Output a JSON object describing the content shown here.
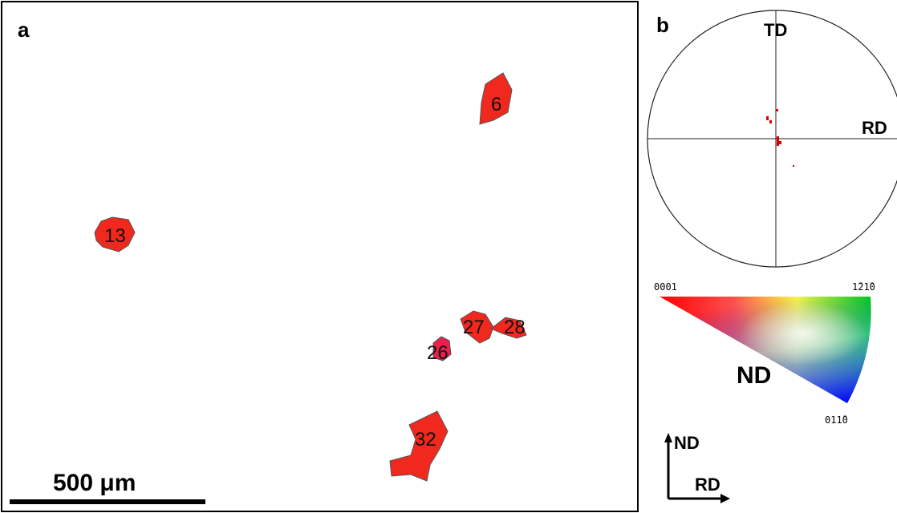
{
  "panel_a": {
    "label": "a",
    "grains": [
      "6",
      "13",
      "26",
      "27",
      "28",
      "32"
    ],
    "scale_bar": "500 μm"
  },
  "panel_b": {
    "label": "b",
    "pole_figure": {
      "top": "TD",
      "right": "RD"
    },
    "ipf": {
      "corner_left": "0001",
      "corner_right": "1̄21̄0",
      "corner_bottom": "011̄0",
      "label": "ND"
    },
    "axes": {
      "vertical": "ND",
      "horizontal": "RD"
    }
  }
}
